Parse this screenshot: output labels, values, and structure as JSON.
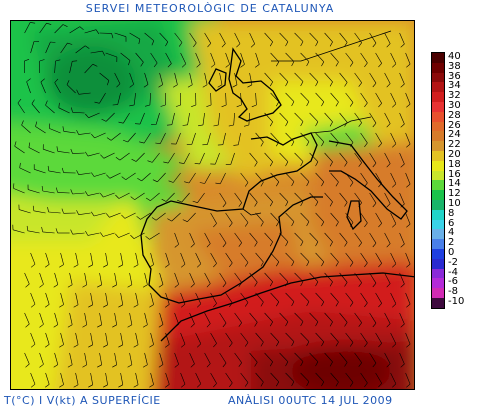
{
  "header": {
    "title": "SERVEI METEOROLÒGIC DE CATALUNYA"
  },
  "footer": {
    "left": "T(°C) I V(kt) A SUPERFÍCIE",
    "right": "ANÀLISI 00UTC 14 JUL 2009"
  },
  "legend": {
    "items": [
      {
        "value": "40",
        "color": "#4a0000"
      },
      {
        "value": "38",
        "color": "#6e0000"
      },
      {
        "value": "36",
        "color": "#8b0a0a"
      },
      {
        "value": "34",
        "color": "#b31414"
      },
      {
        "value": "32",
        "color": "#d21e1e"
      },
      {
        "value": "30",
        "color": "#e83232"
      },
      {
        "value": "28",
        "color": "#e8502d"
      },
      {
        "value": "26",
        "color": "#e06a2a"
      },
      {
        "value": "24",
        "color": "#d77b2a"
      },
      {
        "value": "22",
        "color": "#d6962e"
      },
      {
        "value": "20",
        "color": "#e3c224"
      },
      {
        "value": "18",
        "color": "#e8e81a"
      },
      {
        "value": "16",
        "color": "#c8e62c"
      },
      {
        "value": "14",
        "color": "#5cd93a"
      },
      {
        "value": "12",
        "color": "#1bc34a"
      },
      {
        "value": "10",
        "color": "#19b46a"
      },
      {
        "value": "8",
        "color": "#20d4c8"
      },
      {
        "value": "6",
        "color": "#3ad2e8"
      },
      {
        "value": "4",
        "color": "#6ab0e8"
      },
      {
        "value": "2",
        "color": "#4a7fe8"
      },
      {
        "value": "0",
        "color": "#1f3fe0"
      },
      {
        "value": "-2",
        "color": "#2a2ad0"
      },
      {
        "value": "-4",
        "color": "#8a2ad8"
      },
      {
        "value": "-6",
        "color": "#b42ad8"
      },
      {
        "value": "-8",
        "color": "#d22ab4"
      },
      {
        "value": "-10",
        "color": "#3e0a3e"
      }
    ]
  }
}
